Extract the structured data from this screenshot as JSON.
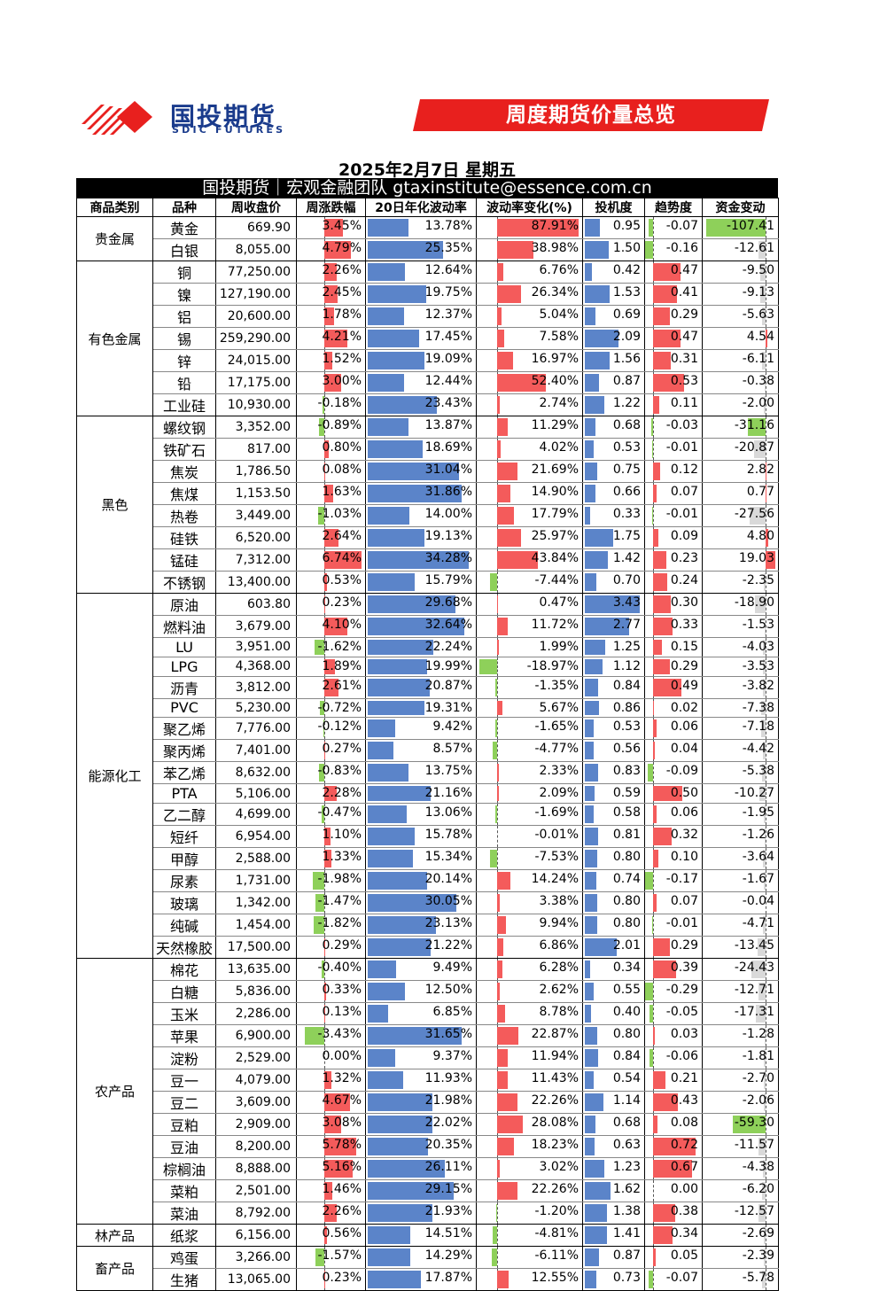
{
  "header": {
    "logo_cn": "国投期货",
    "logo_en": "SDIC FUTURES",
    "banner": "周度期货价量总览",
    "date": "2025年2月7日 星期五",
    "team": "国投期货｜宏观金融团队 gtaxinstitute@essence.com.cn"
  },
  "colors": {
    "red": "#f45b5b",
    "blue": "#5b84c9",
    "green": "#8ed05a",
    "brand": "#1a3b8c",
    "banner": "#e8201e"
  },
  "columns": [
    "商品类别",
    "品种",
    "周收盘价",
    "周涨跌幅",
    "20日年化波动率",
    "波动率变化(%)",
    "投机度",
    "趋势度",
    "资金变动"
  ],
  "groups": [
    {
      "category": "贵金属",
      "rows": [
        [
          "黄金",
          "669.90",
          3.45,
          13.78,
          87.91,
          0.95,
          -0.07,
          -107.41
        ],
        [
          "白银",
          "8,055.00",
          4.79,
          25.35,
          38.98,
          1.5,
          -0.16,
          -12.61
        ]
      ]
    },
    {
      "category": "有色金属",
      "rows": [
        [
          "铜",
          "77,250.00",
          2.26,
          12.64,
          6.76,
          0.42,
          0.47,
          -9.5
        ],
        [
          "镍",
          "127,190.00",
          2.45,
          19.75,
          26.34,
          1.53,
          0.41,
          -9.13
        ],
        [
          "铝",
          "20,600.00",
          1.78,
          12.37,
          5.04,
          0.69,
          0.29,
          -5.63
        ],
        [
          "锡",
          "259,290.00",
          4.21,
          17.45,
          7.58,
          2.09,
          0.47,
          4.54
        ],
        [
          "锌",
          "24,015.00",
          1.52,
          19.09,
          16.97,
          1.56,
          0.31,
          -6.11
        ],
        [
          "铅",
          "17,175.00",
          3.0,
          12.44,
          52.4,
          0.87,
          0.53,
          -0.38
        ],
        [
          "工业硅",
          "10,930.00",
          -0.18,
          23.43,
          2.74,
          1.22,
          0.11,
          -2.0
        ]
      ]
    },
    {
      "category": "黑色",
      "rows": [
        [
          "螺纹钢",
          "3,352.00",
          -0.89,
          13.87,
          11.29,
          0.68,
          -0.03,
          -31.16
        ],
        [
          "铁矿石",
          "817.00",
          0.8,
          18.69,
          4.02,
          0.53,
          -0.01,
          -20.87
        ],
        [
          "焦炭",
          "1,786.50",
          0.08,
          31.04,
          21.69,
          0.75,
          0.12,
          2.82
        ],
        [
          "焦煤",
          "1,153.50",
          1.63,
          31.86,
          14.9,
          0.66,
          0.07,
          0.77
        ],
        [
          "热卷",
          "3,449.00",
          -1.03,
          14.0,
          17.79,
          0.33,
          -0.01,
          -27.56
        ],
        [
          "硅铁",
          "6,520.00",
          2.64,
          19.13,
          25.97,
          1.75,
          0.09,
          4.8
        ],
        [
          "锰硅",
          "7,312.00",
          6.74,
          34.28,
          43.84,
          1.42,
          0.23,
          19.03
        ],
        [
          "不锈钢",
          "13,400.00",
          0.53,
          15.79,
          -7.44,
          0.7,
          0.24,
          -2.35
        ]
      ]
    },
    {
      "category": "能源化工",
      "rows": [
        [
          "原油",
          "603.80",
          0.23,
          29.68,
          0.47,
          3.43,
          0.3,
          -18.9
        ],
        [
          "燃料油",
          "3,679.00",
          4.1,
          32.64,
          11.72,
          2.77,
          0.33,
          -1.53
        ],
        [
          "LU",
          "3,951.00",
          -1.62,
          22.24,
          1.99,
          1.25,
          0.15,
          -4.03
        ],
        [
          "LPG",
          "4,368.00",
          1.89,
          19.99,
          -18.97,
          1.12,
          0.29,
          -3.53
        ],
        [
          "沥青",
          "3,812.00",
          2.61,
          20.87,
          -1.35,
          0.84,
          0.49,
          -3.82
        ],
        [
          "PVC",
          "5,230.00",
          -0.72,
          19.31,
          5.67,
          0.86,
          0.02,
          -7.38
        ],
        [
          "聚乙烯",
          "7,776.00",
          -0.12,
          9.42,
          -1.65,
          0.53,
          0.06,
          -7.18
        ],
        [
          "聚丙烯",
          "7,401.00",
          0.27,
          8.57,
          -4.77,
          0.56,
          0.04,
          -4.42
        ],
        [
          "苯乙烯",
          "8,632.00",
          -0.83,
          13.75,
          2.33,
          0.83,
          -0.09,
          -5.38
        ],
        [
          "PTA",
          "5,106.00",
          2.28,
          21.16,
          2.09,
          0.59,
          0.5,
          -10.27
        ],
        [
          "乙二醇",
          "4,699.00",
          -0.47,
          13.06,
          -1.69,
          0.58,
          0.06,
          -1.95
        ],
        [
          "短纤",
          "6,954.00",
          1.1,
          15.78,
          -0.01,
          0.81,
          0.32,
          -1.26
        ],
        [
          "甲醇",
          "2,588.00",
          1.33,
          15.34,
          -7.53,
          0.8,
          0.1,
          -3.64
        ],
        [
          "尿素",
          "1,731.00",
          -1.98,
          20.14,
          14.24,
          0.74,
          -0.17,
          -1.67
        ],
        [
          "玻璃",
          "1,342.00",
          -1.47,
          30.05,
          3.38,
          0.8,
          0.07,
          -0.04
        ],
        [
          "纯碱",
          "1,454.00",
          -1.82,
          23.13,
          9.94,
          0.8,
          -0.01,
          -4.71
        ],
        [
          "天然橡胶",
          "17,500.00",
          0.29,
          21.22,
          6.86,
          2.01,
          0.29,
          -13.45
        ]
      ]
    },
    {
      "category": "农产品",
      "rows": [
        [
          "棉花",
          "13,635.00",
          -0.4,
          9.49,
          6.28,
          0.34,
          0.39,
          -24.43
        ],
        [
          "白糖",
          "5,836.00",
          0.33,
          12.5,
          2.62,
          0.55,
          -0.29,
          -12.71
        ],
        [
          "玉米",
          "2,286.00",
          0.13,
          6.85,
          8.78,
          0.4,
          -0.05,
          -17.31
        ],
        [
          "苹果",
          "6,900.00",
          -3.43,
          31.65,
          22.87,
          0.8,
          0.03,
          -1.28
        ],
        [
          "淀粉",
          "2,529.00",
          0.0,
          9.37,
          11.94,
          0.84,
          -0.06,
          -1.81
        ],
        [
          "豆一",
          "4,079.00",
          1.32,
          11.93,
          11.43,
          0.54,
          0.21,
          -2.7
        ],
        [
          "豆二",
          "3,609.00",
          4.67,
          21.98,
          22.26,
          1.14,
          0.43,
          -2.06
        ],
        [
          "豆粕",
          "2,909.00",
          3.08,
          22.02,
          28.08,
          0.68,
          0.08,
          -59.3
        ],
        [
          "豆油",
          "8,200.00",
          5.78,
          20.35,
          18.23,
          0.63,
          0.72,
          -11.57
        ],
        [
          "棕榈油",
          "8,888.00",
          5.16,
          26.11,
          3.02,
          1.23,
          0.67,
          -4.38
        ],
        [
          "菜粕",
          "2,501.00",
          1.46,
          29.15,
          22.26,
          1.62,
          0.0,
          -6.2
        ],
        [
          "菜油",
          "8,792.00",
          2.26,
          21.93,
          -1.2,
          1.38,
          0.38,
          -12.57
        ]
      ]
    },
    {
      "category": "林产品",
      "rows": [
        [
          "纸浆",
          "6,156.00",
          0.56,
          14.51,
          -4.81,
          1.41,
          0.34,
          -2.69
        ]
      ]
    },
    {
      "category": "畜产品",
      "rows": [
        [
          "鸡蛋",
          "3,266.00",
          -1.57,
          14.29,
          -6.11,
          0.87,
          0.05,
          -2.39
        ],
        [
          "生猪",
          "13,065.00",
          0.23,
          17.87,
          12.55,
          0.73,
          -0.07,
          -5.78
        ]
      ]
    }
  ]
}
